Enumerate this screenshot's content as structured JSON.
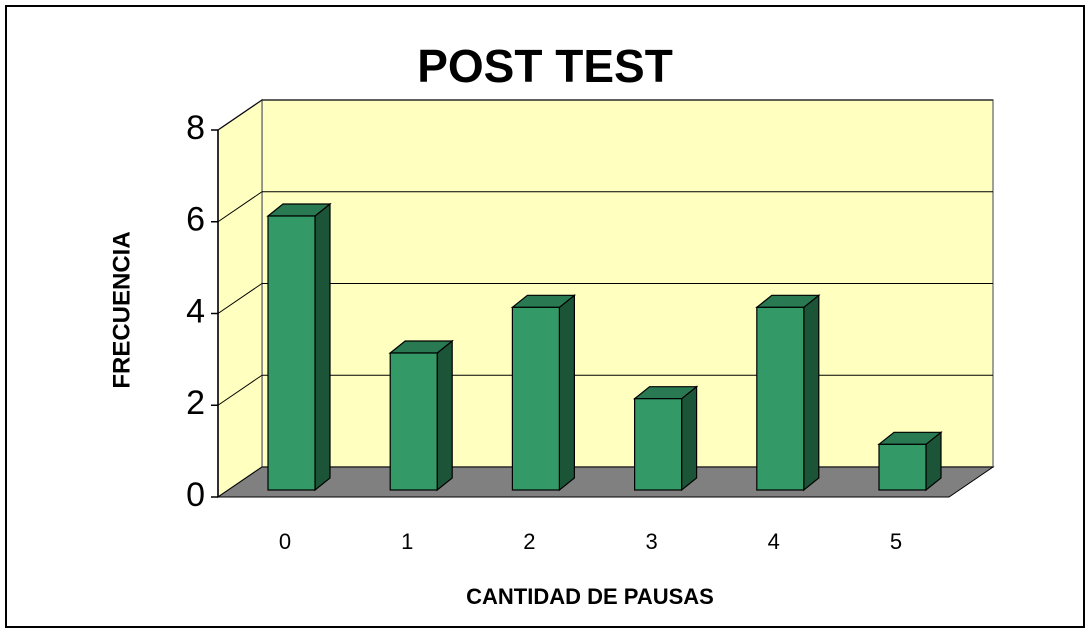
{
  "chart_data": {
    "type": "bar3d",
    "title": "POST TEST",
    "x_label": "CANTIDAD DE PAUSAS",
    "y_label": "FRECUENCIA",
    "categories": [
      "0",
      "1",
      "2",
      "3",
      "4",
      "5"
    ],
    "values": [
      6,
      3,
      4,
      2,
      4,
      1
    ],
    "color": "#339966",
    "ylim": [
      0,
      8
    ],
    "yticks": [
      0,
      2,
      4,
      6,
      8
    ],
    "grid": true
  }
}
